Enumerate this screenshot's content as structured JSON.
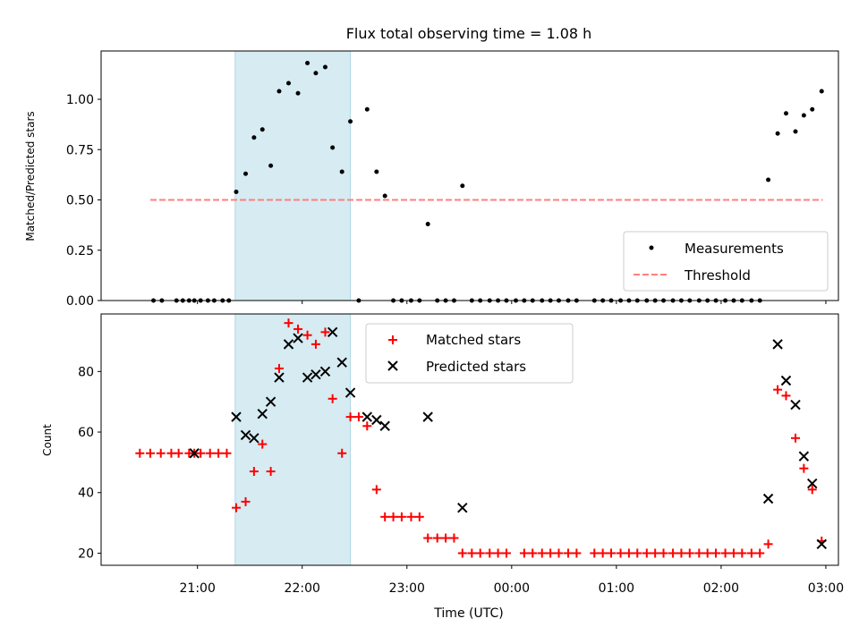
{
  "chart_data": [
    {
      "type": "scatter",
      "title": "Flux total observing time = 1.08 h",
      "xlabel": "",
      "ylabel": "Matched/Predicted stars",
      "ylim": [
        0,
        1.24
      ],
      "yticks": [
        0.0,
        0.25,
        0.5,
        0.75,
        1.0
      ],
      "ytick_labels": [
        "0.00",
        "0.25",
        "0.50",
        "0.75",
        "1.00"
      ],
      "legend_placement": "lower-right",
      "highlight_span": {
        "start_hour": 21.36,
        "end_hour": 22.46,
        "color": "#add8e6"
      },
      "series": [
        {
          "name": "Measurements",
          "marker": "dot",
          "color": "#000000",
          "points": [
            [
              20.58,
              0
            ],
            [
              20.66,
              0
            ],
            [
              20.8,
              0
            ],
            [
              20.86,
              0
            ],
            [
              20.92,
              0
            ],
            [
              20.97,
              0
            ],
            [
              21.03,
              0
            ],
            [
              21.1,
              0
            ],
            [
              21.16,
              0
            ],
            [
              21.24,
              0
            ],
            [
              21.3,
              0
            ],
            [
              21.37,
              0.54
            ],
            [
              21.46,
              0.63
            ],
            [
              21.54,
              0.81
            ],
            [
              21.62,
              0.85
            ],
            [
              21.7,
              0.67
            ],
            [
              21.78,
              1.04
            ],
            [
              21.87,
              1.08
            ],
            [
              21.96,
              1.03
            ],
            [
              22.05,
              1.18
            ],
            [
              22.13,
              1.13
            ],
            [
              22.22,
              1.16
            ],
            [
              22.29,
              0.76
            ],
            [
              22.38,
              0.64
            ],
            [
              22.46,
              0.89
            ],
            [
              22.54,
              0
            ],
            [
              22.62,
              0.95
            ],
            [
              22.71,
              0.64
            ],
            [
              22.79,
              0.52
            ],
            [
              22.87,
              0
            ],
            [
              22.95,
              0
            ],
            [
              23.04,
              0
            ],
            [
              23.12,
              0
            ],
            [
              23.2,
              0.38
            ],
            [
              23.29,
              0
            ],
            [
              23.37,
              0
            ],
            [
              23.45,
              0
            ],
            [
              23.53,
              0.57
            ],
            [
              23.62,
              0
            ],
            [
              23.7,
              0
            ],
            [
              23.79,
              0
            ],
            [
              23.87,
              0
            ],
            [
              23.95,
              0
            ],
            [
              24.04,
              0
            ],
            [
              24.12,
              0
            ],
            [
              24.2,
              0
            ],
            [
              24.29,
              0
            ],
            [
              24.37,
              0
            ],
            [
              24.45,
              0
            ],
            [
              24.54,
              0
            ],
            [
              24.62,
              0
            ],
            [
              24.79,
              0
            ],
            [
              24.87,
              0
            ],
            [
              24.95,
              0
            ],
            [
              25.04,
              0
            ],
            [
              25.12,
              0
            ],
            [
              25.2,
              0
            ],
            [
              25.29,
              0
            ],
            [
              25.37,
              0
            ],
            [
              25.45,
              0
            ],
            [
              25.54,
              0
            ],
            [
              25.62,
              0
            ],
            [
              25.7,
              0
            ],
            [
              25.79,
              0
            ],
            [
              25.87,
              0
            ],
            [
              25.95,
              0
            ],
            [
              26.04,
              0
            ],
            [
              26.12,
              0
            ],
            [
              26.2,
              0
            ],
            [
              26.29,
              0
            ],
            [
              26.37,
              0
            ],
            [
              26.45,
              0.6
            ],
            [
              26.54,
              0.83
            ],
            [
              26.62,
              0.93
            ],
            [
              26.71,
              0.84
            ],
            [
              26.79,
              0.92
            ],
            [
              26.87,
              0.95
            ],
            [
              26.96,
              1.04
            ]
          ]
        },
        {
          "name": "Threshold",
          "marker": "dashed-line",
          "color": "#ff7f7f",
          "x": [
            20.55,
            26.97
          ],
          "y": [
            0.5,
            0.5
          ]
        }
      ]
    },
    {
      "type": "scatter",
      "title": "",
      "xlabel": "Time (UTC)",
      "ylabel": "Count",
      "ylim": [
        16,
        99
      ],
      "yticks": [
        20,
        40,
        60,
        80
      ],
      "ytick_labels": [
        "20",
        "40",
        "60",
        "80"
      ],
      "xlim": [
        20.08,
        27.12
      ],
      "xticks": [
        21,
        22,
        23,
        24,
        25,
        26,
        27
      ],
      "xtick_labels": [
        "21:00",
        "22:00",
        "23:00",
        "00:00",
        "01:00",
        "02:00",
        "03:00"
      ],
      "legend_placement": "upper-center",
      "highlight_span": {
        "start_hour": 21.36,
        "end_hour": 22.46,
        "color": "#add8e6"
      },
      "series": [
        {
          "name": "Matched stars",
          "marker": "plus",
          "color": "#ff0000",
          "points": [
            [
              20.45,
              53
            ],
            [
              20.55,
              53
            ],
            [
              20.65,
              53
            ],
            [
              20.75,
              53
            ],
            [
              20.82,
              53
            ],
            [
              20.92,
              53
            ],
            [
              20.97,
              53
            ],
            [
              21.03,
              53
            ],
            [
              21.12,
              53
            ],
            [
              21.2,
              53
            ],
            [
              21.28,
              53
            ],
            [
              21.37,
              35
            ],
            [
              21.46,
              37
            ],
            [
              21.54,
              47
            ],
            [
              21.62,
              56
            ],
            [
              21.7,
              47
            ],
            [
              21.78,
              81
            ],
            [
              21.87,
              96
            ],
            [
              21.96,
              94
            ],
            [
              22.05,
              92
            ],
            [
              22.13,
              89
            ],
            [
              22.22,
              93
            ],
            [
              22.29,
              71
            ],
            [
              22.38,
              53
            ],
            [
              22.46,
              65
            ],
            [
              22.54,
              65
            ],
            [
              22.62,
              62
            ],
            [
              22.71,
              41
            ],
            [
              22.79,
              32
            ],
            [
              22.87,
              32
            ],
            [
              22.95,
              32
            ],
            [
              23.04,
              32
            ],
            [
              23.12,
              32
            ],
            [
              23.2,
              25
            ],
            [
              23.29,
              25
            ],
            [
              23.37,
              25
            ],
            [
              23.45,
              25
            ],
            [
              23.53,
              20
            ],
            [
              23.62,
              20
            ],
            [
              23.7,
              20
            ],
            [
              23.79,
              20
            ],
            [
              23.87,
              20
            ],
            [
              23.95,
              20
            ],
            [
              24.12,
              20
            ],
            [
              24.2,
              20
            ],
            [
              24.29,
              20
            ],
            [
              24.37,
              20
            ],
            [
              24.45,
              20
            ],
            [
              24.54,
              20
            ],
            [
              24.62,
              20
            ],
            [
              24.79,
              20
            ],
            [
              24.87,
              20
            ],
            [
              24.95,
              20
            ],
            [
              25.04,
              20
            ],
            [
              25.12,
              20
            ],
            [
              25.2,
              20
            ],
            [
              25.29,
              20
            ],
            [
              25.37,
              20
            ],
            [
              25.45,
              20
            ],
            [
              25.54,
              20
            ],
            [
              25.62,
              20
            ],
            [
              25.7,
              20
            ],
            [
              25.79,
              20
            ],
            [
              25.87,
              20
            ],
            [
              25.95,
              20
            ],
            [
              26.04,
              20
            ],
            [
              26.12,
              20
            ],
            [
              26.2,
              20
            ],
            [
              26.29,
              20
            ],
            [
              26.37,
              20
            ],
            [
              26.45,
              23
            ],
            [
              26.54,
              74
            ],
            [
              26.62,
              72
            ],
            [
              26.71,
              58
            ],
            [
              26.79,
              48
            ],
            [
              26.87,
              41
            ],
            [
              26.96,
              24
            ]
          ]
        },
        {
          "name": "Predicted stars",
          "marker": "x",
          "color": "#000000",
          "points": [
            [
              20.97,
              53
            ],
            [
              21.37,
              65
            ],
            [
              21.46,
              59
            ],
            [
              21.54,
              58
            ],
            [
              21.62,
              66
            ],
            [
              21.7,
              70
            ],
            [
              21.78,
              78
            ],
            [
              21.87,
              89
            ],
            [
              21.96,
              91
            ],
            [
              22.05,
              78
            ],
            [
              22.13,
              79
            ],
            [
              22.22,
              80
            ],
            [
              22.29,
              93
            ],
            [
              22.38,
              83
            ],
            [
              22.46,
              73
            ],
            [
              22.62,
              65
            ],
            [
              22.71,
              64
            ],
            [
              22.79,
              62
            ],
            [
              23.2,
              65
            ],
            [
              23.53,
              35
            ],
            [
              26.45,
              38
            ],
            [
              26.54,
              89
            ],
            [
              26.62,
              77
            ],
            [
              26.71,
              69
            ],
            [
              26.79,
              52
            ],
            [
              26.87,
              43
            ],
            [
              26.96,
              23
            ]
          ]
        }
      ]
    }
  ]
}
